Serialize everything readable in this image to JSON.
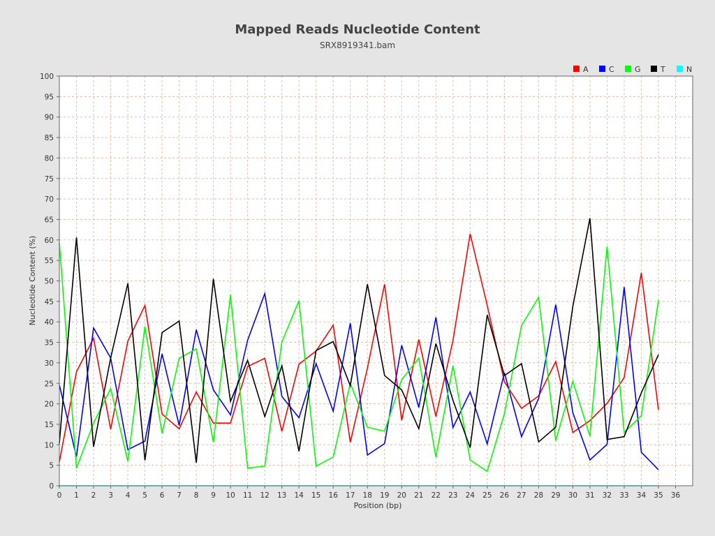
{
  "chart_data": {
    "type": "line",
    "title": "Mapped Reads Nucleotide Content",
    "subtitle": "SRX8919341.bam",
    "xlabel": "Position (bp)",
    "ylabel": "Nucleotide Content (%)",
    "xlim": [
      0,
      37
    ],
    "ylim": [
      0,
      100
    ],
    "x_ticks": [
      "0",
      "1",
      "2",
      "3",
      "4",
      "5",
      "6",
      "7",
      "8",
      "9",
      "10",
      "11",
      "12",
      "13",
      "14",
      "15",
      "16",
      "17",
      "18",
      "19",
      "20",
      "21",
      "22",
      "23",
      "24",
      "25",
      "26",
      "27",
      "28",
      "29",
      "30",
      "31",
      "32",
      "33",
      "34",
      "35",
      "36"
    ],
    "y_ticks": [
      "0",
      "5",
      "10",
      "15",
      "20",
      "25",
      "30",
      "35",
      "40",
      "45",
      "50",
      "55",
      "60",
      "65",
      "70",
      "75",
      "80",
      "85",
      "90",
      "95",
      "100"
    ],
    "grid": true,
    "legend_position": "top-right",
    "series": [
      {
        "name": "A",
        "color": "#ff0000",
        "x": [
          0,
          1,
          2,
          3,
          4,
          5,
          6,
          7,
          8,
          9,
          10,
          11,
          12,
          13,
          14,
          15,
          16,
          17,
          18,
          19,
          20,
          21,
          22,
          23,
          24,
          25,
          26,
          27,
          28,
          29,
          30,
          31,
          32,
          33,
          34,
          35
        ],
        "values": [
          5.8,
          27.8,
          36.0,
          13.8,
          35.3,
          44.0,
          17.5,
          13.9,
          22.9,
          15.3,
          15.3,
          29.1,
          31.1,
          13.3,
          29.7,
          32.9,
          39.2,
          10.6,
          28.7,
          49.2,
          16.0,
          35.7,
          16.9,
          35.5,
          61.5,
          44.0,
          25.4,
          18.9,
          21.9,
          30.3,
          13.0,
          15.9,
          20.1,
          26.4,
          52.0,
          18.5
        ]
      },
      {
        "name": "C",
        "color": "#0000ff",
        "x": [
          0,
          1,
          2,
          3,
          4,
          5,
          6,
          7,
          8,
          9,
          10,
          11,
          12,
          13,
          14,
          15,
          16,
          17,
          18,
          19,
          20,
          21,
          22,
          23,
          24,
          25,
          26,
          27,
          28,
          29,
          30,
          31,
          32,
          33,
          34,
          35
        ],
        "values": [
          24.6,
          7.1,
          38.5,
          31.2,
          8.8,
          10.9,
          32.2,
          14.7,
          38.1,
          23.4,
          17.3,
          35.5,
          46.9,
          21.8,
          16.6,
          29.8,
          18.2,
          39.7,
          7.5,
          10.3,
          34.3,
          19.1,
          41.1,
          14.2,
          22.9,
          10.2,
          27.6,
          12.0,
          21.3,
          44.2,
          17.8,
          6.3,
          10.1,
          48.5,
          8.2,
          3.9
        ]
      },
      {
        "name": "G",
        "color": "#00ff00",
        "x": [
          0,
          1,
          2,
          3,
          4,
          5,
          6,
          7,
          8,
          9,
          10,
          11,
          12,
          13,
          14,
          15,
          16,
          17,
          18,
          19,
          20,
          21,
          22,
          23,
          24,
          25,
          26,
          27,
          28,
          29,
          30,
          31,
          32,
          33,
          34,
          35
        ],
        "values": [
          59.3,
          4.3,
          15.3,
          23.7,
          6.0,
          38.9,
          12.8,
          31.1,
          33.4,
          10.6,
          46.6,
          4.3,
          4.8,
          35.1,
          45.2,
          4.8,
          7.0,
          25.0,
          14.3,
          13.3,
          25.9,
          31.2,
          7.0,
          29.3,
          6.3,
          3.5,
          17.6,
          39.1,
          46.0,
          11.0,
          25.5,
          12.1,
          58.4,
          13.0,
          17.1,
          45.3
        ]
      },
      {
        "name": "T",
        "color": "#000000",
        "x": [
          0,
          1,
          2,
          3,
          4,
          5,
          6,
          7,
          8,
          9,
          10,
          11,
          12,
          13,
          14,
          15,
          16,
          17,
          18,
          19,
          20,
          21,
          22,
          23,
          24,
          25,
          26,
          27,
          28,
          29,
          30,
          31,
          32,
          33,
          34,
          35
        ],
        "values": [
          10.3,
          60.6,
          9.5,
          31.2,
          49.4,
          6.2,
          37.4,
          40.2,
          5.6,
          50.5,
          20.6,
          30.6,
          16.9,
          29.3,
          8.4,
          33.0,
          35.2,
          24.4,
          49.2,
          26.9,
          23.4,
          13.9,
          34.7,
          20.8,
          9.3,
          41.7,
          26.9,
          29.8,
          10.7,
          14.3,
          43.8,
          65.3,
          11.3,
          12.0,
          22.7,
          32.0
        ]
      },
      {
        "name": "N",
        "color": "#00ffff",
        "x": [
          0,
          1,
          2,
          3,
          4,
          5,
          6,
          7,
          8,
          9,
          10,
          11,
          12,
          13,
          14,
          15,
          16,
          17,
          18,
          19,
          20,
          21,
          22,
          23,
          24,
          25,
          26,
          27,
          28,
          29,
          30,
          31,
          32,
          33,
          34,
          35
        ],
        "values": [
          0,
          0,
          0,
          0,
          0,
          0,
          0,
          0,
          0,
          0,
          0,
          0,
          0,
          0,
          0,
          0,
          0,
          0,
          0,
          0,
          0,
          0,
          0,
          0,
          0,
          0,
          0,
          0,
          0,
          0,
          0,
          0,
          0,
          0,
          0,
          0
        ]
      }
    ]
  }
}
